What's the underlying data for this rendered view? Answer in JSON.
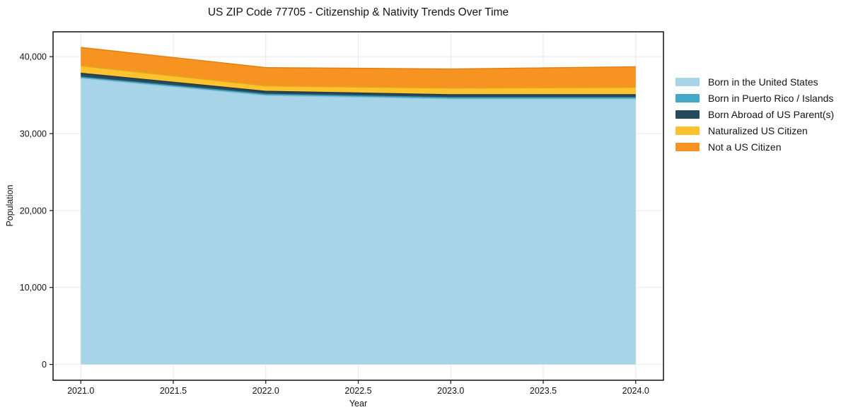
{
  "page": {
    "background": "#ffffff"
  },
  "chart_data": {
    "type": "area",
    "stacked": true,
    "title": "US ZIP Code 77705 - Citizenship & Nativity Trends Over Time",
    "xlabel": "Year",
    "ylabel": "Population",
    "x": [
      2021,
      2022,
      2023,
      2024
    ],
    "series": [
      {
        "name": "Born in the United States",
        "color": "#a8d4e8",
        "edge_color": "#8cc1dc",
        "values": [
          37200,
          34950,
          34500,
          34500
        ]
      },
      {
        "name": "Born in Puerto Rico / Islands",
        "color": "#42aac6",
        "edge_color": "#3494af",
        "values": [
          150,
          180,
          190,
          190
        ]
      },
      {
        "name": "Born Abroad of US Parent(s)",
        "color": "#27495c",
        "edge_color": "#1d3846",
        "values": [
          500,
          370,
          370,
          370
        ]
      },
      {
        "name": "Naturalized US Citizen",
        "color": "#fcc32f",
        "edge_color": "#e2a81d",
        "values": [
          950,
          690,
          840,
          930
        ]
      },
      {
        "name": "Not a US Citizen",
        "color": "#f79421",
        "edge_color": "#e08013",
        "values": [
          2400,
          2390,
          2500,
          2700
        ]
      }
    ],
    "xlim": [
      2020.85,
      2024.15
    ],
    "ylim": [
      -2060,
      43230
    ],
    "xticks": {
      "values": [
        2021.0,
        2021.5,
        2022.0,
        2022.5,
        2023.0,
        2023.5,
        2024.0
      ],
      "labels": [
        "2021.0",
        "2021.5",
        "2022.0",
        "2022.5",
        "2023.0",
        "2023.5",
        "2024.0"
      ]
    },
    "yticks": {
      "values": [
        0,
        10000,
        20000,
        30000,
        40000
      ],
      "labels": [
        "0",
        "10,000",
        "20,000",
        "30,000",
        "40,000"
      ]
    },
    "grid": true,
    "grid_color": "#e8e8eb",
    "spine_color": "#000000",
    "tick_color": "#141414",
    "legend_position": "right"
  }
}
